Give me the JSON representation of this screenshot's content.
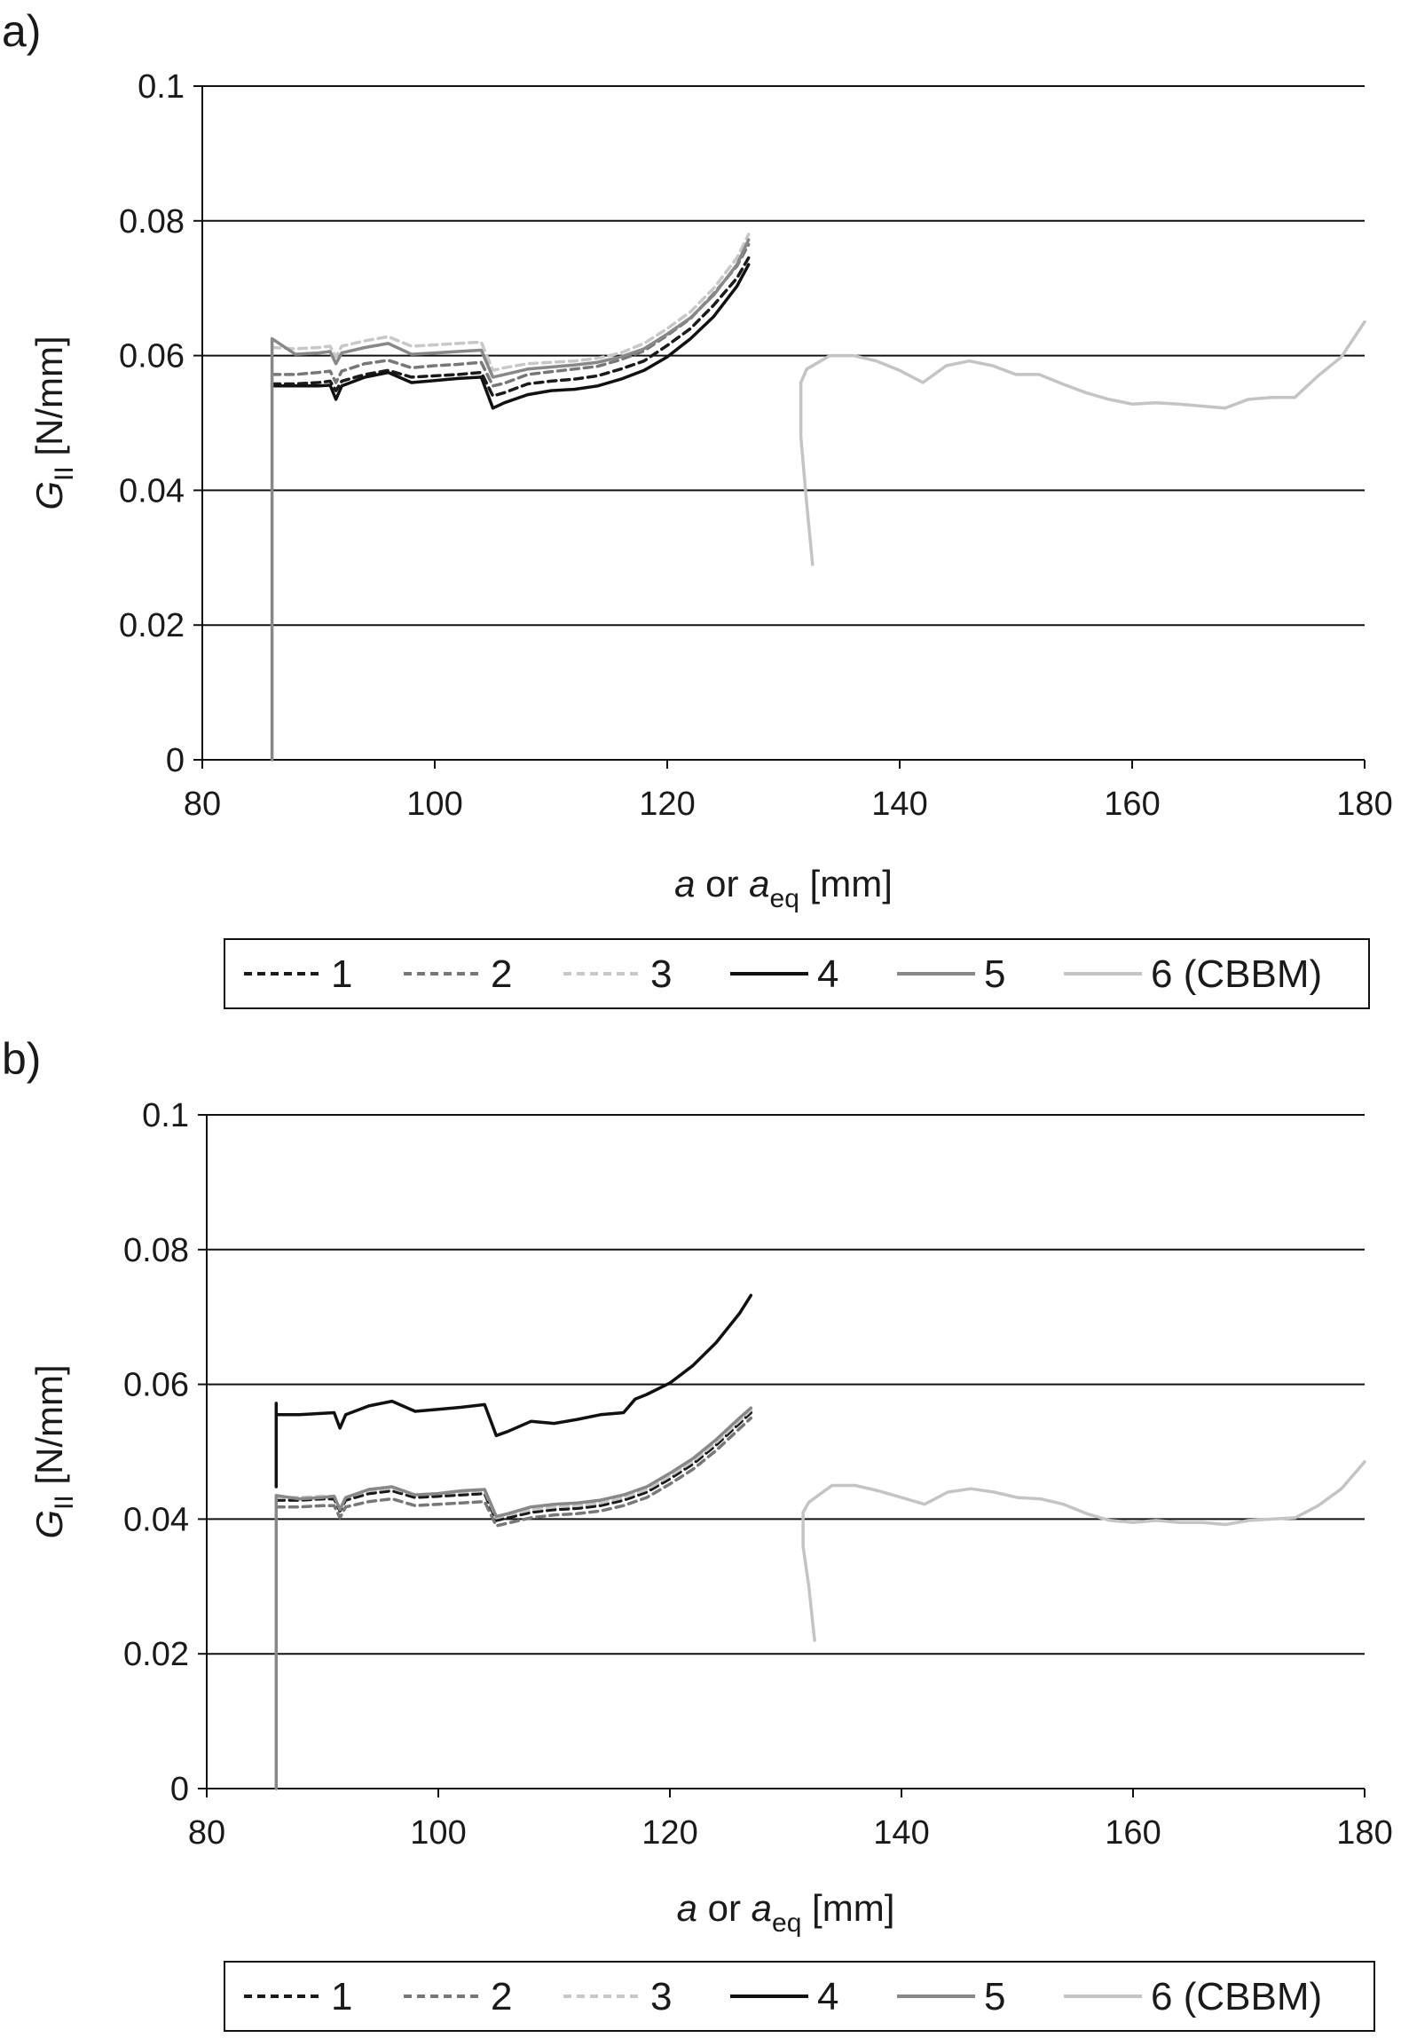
{
  "chart_data": [
    {
      "panel_label": "a)",
      "type": "line",
      "xlabel": {
        "italic": "a",
        "mid": " or ",
        "italic2": "a",
        "sub": "eq",
        "tail": " [mm]"
      },
      "ylabel": {
        "italic": "G",
        "sub": "II",
        "tail": " [N/mm]"
      },
      "xlim": [
        80,
        180
      ],
      "ylim": [
        0,
        0.1
      ],
      "xticks": [
        80,
        100,
        120,
        140,
        160,
        180
      ],
      "yticks": [
        "0",
        "0.02",
        "0.04",
        "0.06",
        "0.08",
        "0.1"
      ],
      "grid": "horizontal",
      "legend_position": "bottom",
      "series": [
        {
          "name": "1",
          "color": "#1a1a1a",
          "dashed": true,
          "x": [
            86,
            88,
            90,
            91,
            91.5,
            92,
            94,
            96,
            98,
            100,
            102,
            104,
            105,
            106,
            108,
            110,
            112,
            114,
            116,
            118,
            120,
            122,
            124,
            126,
            127
          ],
          "y": [
            0.0558,
            0.0558,
            0.056,
            0.0562,
            0.0548,
            0.0562,
            0.0572,
            0.0578,
            0.0568,
            0.057,
            0.0572,
            0.0575,
            0.054,
            0.0545,
            0.0558,
            0.0562,
            0.0565,
            0.057,
            0.058,
            0.0592,
            0.0615,
            0.064,
            0.0675,
            0.0715,
            0.0745
          ]
        },
        {
          "name": "2",
          "color": "#777777",
          "dashed": true,
          "x": [
            86,
            88,
            90,
            91,
            91.5,
            92,
            94,
            96,
            98,
            100,
            102,
            104,
            105,
            106,
            108,
            110,
            112,
            114,
            116,
            118,
            120,
            122,
            124,
            126,
            127
          ],
          "y": [
            0.0572,
            0.0572,
            0.0575,
            0.0577,
            0.056,
            0.0577,
            0.0588,
            0.0593,
            0.0582,
            0.0585,
            0.0587,
            0.059,
            0.0555,
            0.0559,
            0.0572,
            0.0576,
            0.058,
            0.0584,
            0.0594,
            0.0607,
            0.063,
            0.0655,
            0.0692,
            0.0733,
            0.0765
          ]
        },
        {
          "name": "3",
          "color": "#c8c8c8",
          "dashed": true,
          "x": [
            86,
            88,
            90,
            91,
            91.5,
            92,
            94,
            96,
            98,
            100,
            102,
            104,
            105,
            106,
            108,
            110,
            112,
            114,
            116,
            118,
            120,
            122,
            124,
            126,
            127
          ],
          "y": [
            0.0612,
            0.061,
            0.0612,
            0.0614,
            0.0598,
            0.0614,
            0.0622,
            0.0628,
            0.0614,
            0.0616,
            0.0618,
            0.062,
            0.0578,
            0.0582,
            0.0588,
            0.059,
            0.0592,
            0.0596,
            0.0604,
            0.0618,
            0.064,
            0.0665,
            0.07,
            0.0745,
            0.078
          ]
        },
        {
          "name": "4",
          "color": "#111111",
          "dashed": false,
          "x": [
            86,
            88,
            90,
            91,
            91.5,
            92,
            94,
            96,
            98,
            100,
            102,
            104,
            105,
            106,
            108,
            110,
            112,
            114,
            116,
            118,
            120,
            122,
            124,
            126,
            127
          ],
          "y": [
            0.0555,
            0.0555,
            0.0555,
            0.0556,
            0.0535,
            0.0555,
            0.0568,
            0.0575,
            0.056,
            0.0563,
            0.0566,
            0.0568,
            0.0522,
            0.053,
            0.0542,
            0.0548,
            0.055,
            0.0555,
            0.0565,
            0.0578,
            0.0598,
            0.0625,
            0.0658,
            0.0703,
            0.0735
          ]
        },
        {
          "name": "5",
          "color": "#888888",
          "dashed": false,
          "x": [
            86,
            86,
            88,
            90,
            91,
            91.5,
            92,
            94,
            96,
            98,
            100,
            102,
            104,
            105,
            106,
            108,
            110,
            112,
            114,
            116,
            118,
            120,
            122,
            124,
            126,
            127
          ],
          "y": [
            0,
            0.0625,
            0.0602,
            0.0604,
            0.0606,
            0.0588,
            0.0604,
            0.0612,
            0.0618,
            0.0602,
            0.0604,
            0.0606,
            0.0608,
            0.0568,
            0.0572,
            0.058,
            0.0583,
            0.0586,
            0.059,
            0.0598,
            0.061,
            0.0632,
            0.0656,
            0.069,
            0.0735,
            0.0772
          ]
        },
        {
          "name": "6 (CBBM)",
          "color": "#c4c4c4",
          "dashed": false,
          "x": [
            132.5,
            132,
            131.5,
            131.5,
            132,
            134,
            136,
            138,
            140,
            142,
            144,
            146,
            148,
            150,
            152,
            154,
            156,
            158,
            160,
            162,
            164,
            166,
            168,
            170,
            172,
            174,
            176,
            178,
            180
          ],
          "y": [
            0.029,
            0.038,
            0.048,
            0.056,
            0.058,
            0.06,
            0.06,
            0.0592,
            0.0578,
            0.056,
            0.0585,
            0.0592,
            0.0585,
            0.0572,
            0.0572,
            0.0558,
            0.0545,
            0.0535,
            0.0528,
            0.053,
            0.0528,
            0.0525,
            0.0522,
            0.0535,
            0.0538,
            0.0538,
            0.057,
            0.0598,
            0.065
          ]
        }
      ]
    },
    {
      "panel_label": "b)",
      "type": "line",
      "xlabel": {
        "italic": "a",
        "mid": " or ",
        "italic2": "a",
        "sub": "eq",
        "tail": " [mm]"
      },
      "ylabel": {
        "italic": "G",
        "sub": "II",
        "tail": " [N/mm]"
      },
      "xlim": [
        80,
        180
      ],
      "ylim": [
        0,
        0.1
      ],
      "xticks": [
        80,
        100,
        120,
        140,
        160,
        180
      ],
      "yticks": [
        "0",
        "0.02",
        "0.04",
        "0.06",
        "0.08",
        "0.1"
      ],
      "grid": "horizontal",
      "legend_position": "bottom",
      "series": [
        {
          "name": "1",
          "color": "#1a1a1a",
          "dashed": true,
          "x": [
            86,
            88,
            90,
            91,
            91.5,
            92,
            94,
            96,
            98,
            100,
            102,
            104,
            105,
            106,
            108,
            110,
            112,
            114,
            116,
            118,
            120,
            122,
            124,
            126,
            127
          ],
          "y": [
            0.0428,
            0.0428,
            0.043,
            0.043,
            0.0412,
            0.0428,
            0.0438,
            0.0442,
            0.0432,
            0.0434,
            0.0436,
            0.0438,
            0.0398,
            0.0402,
            0.041,
            0.0414,
            0.0416,
            0.042,
            0.0428,
            0.044,
            0.046,
            0.0482,
            0.051,
            0.0542,
            0.0558
          ]
        },
        {
          "name": "2",
          "color": "#777777",
          "dashed": true,
          "x": [
            86,
            88,
            90,
            91,
            91.5,
            92,
            94,
            96,
            98,
            100,
            102,
            104,
            105,
            106,
            108,
            110,
            112,
            114,
            116,
            118,
            120,
            122,
            124,
            126,
            127
          ],
          "y": [
            0.0418,
            0.0418,
            0.042,
            0.042,
            0.0402,
            0.0418,
            0.0426,
            0.043,
            0.042,
            0.0422,
            0.0424,
            0.0426,
            0.039,
            0.0394,
            0.0402,
            0.0406,
            0.0408,
            0.0412,
            0.042,
            0.0432,
            0.0452,
            0.0474,
            0.0502,
            0.0534,
            0.055
          ]
        },
        {
          "name": "3",
          "color": "#c8c8c8",
          "dashed": true,
          "x": [
            86,
            88,
            90,
            91,
            91.5,
            92,
            94,
            96,
            98,
            100,
            102,
            104,
            105,
            106,
            108,
            110,
            112,
            114,
            116,
            118,
            120,
            122,
            124,
            126,
            127
          ],
          "y": [
            0.0432,
            0.0432,
            0.0434,
            0.0434,
            0.0416,
            0.0432,
            0.0442,
            0.0446,
            0.0436,
            0.0438,
            0.044,
            0.0442,
            0.0402,
            0.0406,
            0.0414,
            0.0418,
            0.042,
            0.0424,
            0.0432,
            0.0444,
            0.0464,
            0.0486,
            0.0514,
            0.0546,
            0.0562
          ]
        },
        {
          "name": "4",
          "color": "#111111",
          "dashed": false,
          "x": [
            86,
            86,
            86,
            88,
            90,
            91,
            91.5,
            92,
            94,
            96,
            98,
            100,
            102,
            104,
            105,
            106,
            108,
            110,
            112,
            114,
            116,
            117,
            118,
            120,
            122,
            124,
            126,
            127
          ],
          "y": [
            0.0448,
            0.0572,
            0.0555,
            0.0555,
            0.0557,
            0.0558,
            0.0535,
            0.0555,
            0.0568,
            0.0575,
            0.056,
            0.0563,
            0.0566,
            0.057,
            0.0524,
            0.053,
            0.0545,
            0.0542,
            0.0548,
            0.0555,
            0.0558,
            0.0578,
            0.0585,
            0.0602,
            0.0628,
            0.0662,
            0.0705,
            0.0732
          ]
        },
        {
          "name": "5",
          "color": "#888888",
          "dashed": false,
          "x": [
            86,
            86,
            88,
            90,
            91,
            91.5,
            92,
            94,
            96,
            98,
            100,
            102,
            104,
            105,
            106,
            108,
            110,
            112,
            114,
            116,
            118,
            120,
            122,
            124,
            126,
            127
          ],
          "y": [
            0,
            0.0435,
            0.043,
            0.0432,
            0.0434,
            0.0414,
            0.0432,
            0.0444,
            0.0448,
            0.0436,
            0.0438,
            0.0442,
            0.0444,
            0.0404,
            0.0408,
            0.0418,
            0.0422,
            0.0424,
            0.0428,
            0.0436,
            0.0448,
            0.0468,
            0.049,
            0.0518,
            0.055,
            0.0565
          ]
        },
        {
          "name": "6 (CBBM)",
          "color": "#c4c4c4",
          "dashed": false,
          "x": [
            132.5,
            132,
            131.5,
            131.5,
            132,
            134,
            136,
            138,
            140,
            142,
            144,
            146,
            148,
            150,
            152,
            154,
            156,
            158,
            160,
            162,
            164,
            166,
            168,
            170,
            172,
            174,
            176,
            178,
            180
          ],
          "y": [
            0.022,
            0.03,
            0.036,
            0.041,
            0.0425,
            0.045,
            0.045,
            0.0442,
            0.0432,
            0.0422,
            0.044,
            0.0445,
            0.044,
            0.0432,
            0.043,
            0.0422,
            0.0408,
            0.0398,
            0.0395,
            0.0398,
            0.0395,
            0.0395,
            0.0392,
            0.0398,
            0.04,
            0.0402,
            0.042,
            0.0445,
            0.0485
          ]
        }
      ]
    }
  ]
}
